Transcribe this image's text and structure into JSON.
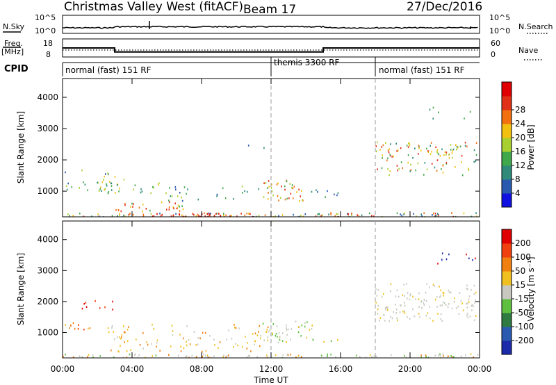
{
  "header": {
    "station": "Christmas Valley West (fitACF)",
    "beam": "Beam 17",
    "date": "27/Dec/2016"
  },
  "panels": {
    "nsky_label": "N.Sky",
    "nsearch_label": "N.Search",
    "nsky_ticks": [
      "10^5",
      "10^0"
    ],
    "nsearch_ticks": [
      "10^5",
      "10^0"
    ],
    "freq_label_1": "Freq.",
    "freq_label_2": "[MHz]",
    "freq_ticks": [
      "18",
      "8"
    ],
    "nave_label": "Nave",
    "nave_ticks": [
      "60",
      "0"
    ],
    "cpid_label": "CPID",
    "modes": [
      {
        "name": "normal (fast) 151 RF",
        "start_hour": 0
      },
      {
        "name": "themis 3300 RF",
        "start_hour": 12
      },
      {
        "name": "normal (fast) 151 RF",
        "start_hour": 18
      }
    ]
  },
  "chart_data": [
    {
      "type": "line",
      "name": "frequency",
      "ylabel": "Freq. [MHz]",
      "ylim": [
        8,
        18
      ],
      "x": [
        0,
        3,
        3,
        15,
        15,
        24
      ],
      "values": [
        13,
        13,
        10.8,
        10.8,
        13,
        13
      ]
    },
    {
      "type": "heatmap",
      "name": "power",
      "ylabel": "Slant Range [km]",
      "xlabel": "",
      "xlim": [
        0,
        24
      ],
      "ylim": [
        180,
        4600
      ],
      "x_ticks": [
        "00:00",
        "04:00",
        "08:00",
        "12:00",
        "16:00",
        "20:00",
        "00:00"
      ],
      "y_ticks": [
        1000,
        2000,
        3000,
        4000
      ],
      "colorbar_label": "Power [dB]",
      "colorbar_ticks": [
        4,
        8,
        12,
        16,
        20,
        24,
        28
      ],
      "colorbar_colors": [
        "#1010e0",
        "#2a5ab0",
        "#2f8a7a",
        "#3fa84a",
        "#a8d030",
        "#f2c010",
        "#f27010",
        "#e03018",
        "#e00000"
      ]
    },
    {
      "type": "heatmap",
      "name": "velocity",
      "ylabel": "Slant Range [km]",
      "xlabel": "Time UT",
      "xlim": [
        0,
        24
      ],
      "ylim": [
        180,
        4600
      ],
      "x_ticks": [
        "00:00",
        "04:00",
        "08:00",
        "12:00",
        "16:00",
        "20:00",
        "00:00"
      ],
      "y_ticks": [
        1000,
        2000,
        3000,
        4000
      ],
      "colorbar_label": "Velocity [m s⁻¹]",
      "colorbar_ticks": [
        200,
        100,
        50,
        15,
        -15,
        -50,
        -100,
        -200
      ],
      "colorbar_colors": [
        "#1a2aa8",
        "#2a5ab0",
        "#2f7a40",
        "#5fc040",
        "#c8c8c0",
        "#f0c020",
        "#f08010",
        "#f04010",
        "#e00000"
      ]
    }
  ]
}
